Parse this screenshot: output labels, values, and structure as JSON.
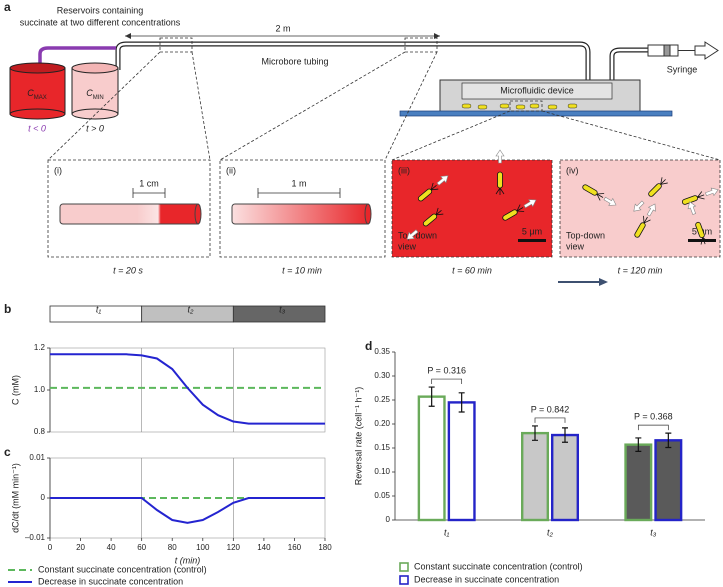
{
  "panel_a": {
    "label": "a",
    "reservoirs_label": [
      "Reservoirs containing",
      "succinate at two different concentrations"
    ],
    "length": "2 m",
    "tubing": "Microbore tubing",
    "device": "Microfluidic device",
    "syringe": "Syringe",
    "reservoirs": [
      {
        "symbol": "C",
        "subscript": "MAX",
        "time": "t < 0"
      },
      {
        "symbol": "C",
        "subscript": "MIN",
        "time": "t > 0"
      }
    ],
    "insets": [
      {
        "label": "(i)",
        "scale": "1 cm",
        "time": "t = 20 s"
      },
      {
        "label": "(ii)",
        "scale": "1 m",
        "time": "t = 10 min"
      },
      {
        "label": "(iii)",
        "view": [
          "Top-down",
          "view"
        ],
        "scale": "5 μm",
        "time": "t = 60 min"
      },
      {
        "label": "(iv)",
        "view": [
          "Top-down",
          "view"
        ],
        "scale": "5 μm",
        "time": "t = 120 min"
      }
    ]
  },
  "chart_data": [
    {
      "type": "line",
      "panel": "b",
      "ylabel": "C (mM)",
      "xlim": [
        0,
        180
      ],
      "ylim": [
        0.8,
        1.2
      ],
      "yticks": [
        0.8,
        {
          "value": 1,
          "label": "1.0"
        },
        1.2
      ],
      "phases": [
        {
          "label": "t₁",
          "start": 0,
          "end": 60,
          "color": "#ffffff"
        },
        {
          "label": "t₂",
          "start": 60,
          "end": 120,
          "color": "#c0c0c0"
        },
        {
          "label": "t₃",
          "start": 120,
          "end": 180,
          "color": "#666666"
        }
      ],
      "x": [
        0,
        10,
        20,
        30,
        40,
        50,
        60,
        70,
        80,
        90,
        100,
        110,
        120,
        130,
        140,
        150,
        160,
        170,
        180
      ],
      "series": [
        {
          "color": "#5cb85c",
          "style": "dashed",
          "values": [
            1.01,
            1.01,
            1.01,
            1.01,
            1.01,
            1.01,
            1.01,
            1.01,
            1.01,
            1.01,
            1.01,
            1.01,
            1.01,
            1.01,
            1.01,
            1.01,
            1.01,
            1.01,
            1.01
          ]
        },
        {
          "color": "#2424d0",
          "style": "solid",
          "values": [
            1.17,
            1.17,
            1.17,
            1.17,
            1.17,
            1.17,
            1.165,
            1.15,
            1.1,
            1.01,
            0.93,
            0.88,
            0.85,
            0.84,
            0.84,
            0.84,
            0.84,
            0.84,
            0.84
          ]
        }
      ]
    },
    {
      "type": "line",
      "panel": "c",
      "ylabel": "dC/dt (mM min⁻¹)",
      "xlabel": "t (min)",
      "xlim": [
        0,
        180
      ],
      "xticks": [
        0,
        20,
        40,
        60,
        80,
        100,
        120,
        140,
        160,
        180
      ],
      "ylim": [
        -0.01,
        0.01
      ],
      "yticks": [
        {
          "value": -0.01,
          "label": "–0.01"
        },
        0,
        0.01
      ],
      "vlines": [
        60,
        120
      ],
      "x": [
        0,
        10,
        20,
        30,
        40,
        50,
        60,
        70,
        80,
        90,
        100,
        110,
        120,
        130,
        140,
        150,
        160,
        170,
        180
      ],
      "series": [
        {
          "name": "Constant succinate concentration (control)",
          "color": "#5cb85c",
          "style": "dashed",
          "values": [
            0,
            0,
            0,
            0,
            0,
            0,
            0,
            0,
            0,
            0,
            0,
            0,
            0,
            0,
            0,
            0,
            0,
            0,
            0
          ]
        },
        {
          "name": "Decrease in succinate concentration",
          "color": "#2424d0",
          "style": "solid",
          "values": [
            0,
            0,
            0,
            0,
            0,
            0,
            0,
            -0.003,
            -0.0055,
            -0.0062,
            -0.0055,
            -0.0035,
            -0.0012,
            0,
            0,
            0,
            0,
            0,
            0
          ]
        }
      ]
    },
    {
      "type": "bar",
      "panel": "d",
      "ylabel": "Reversal rate (cell⁻¹ h⁻¹)",
      "categories": [
        "t₁",
        "t₂",
        "t₃"
      ],
      "fills": [
        "#ffffff",
        "#c8c8c8",
        "#5a5a5a"
      ],
      "ylim": [
        0,
        0.35
      ],
      "yticks": [
        0,
        0.05,
        {
          "value": 0.1,
          "label": "0.10"
        },
        0.15,
        {
          "value": 0.2,
          "label": "0.20"
        },
        0.25,
        {
          "value": 0.3,
          "label": "0.30"
        },
        0.35
      ],
      "annotations": [
        "P = 0.316",
        "P = 0.842",
        "P = 0.368"
      ],
      "series": [
        {
          "name": "Constant succinate concentration (control)",
          "color": "#6aaa5a",
          "values": [
            0.257,
            0.181,
            0.157
          ],
          "errors": [
            0.02,
            0.015,
            0.014
          ]
        },
        {
          "name": "Decrease in succinate concentration",
          "color": "#2424c8",
          "values": [
            0.245,
            0.177,
            0.166
          ],
          "errors": [
            0.02,
            0.015,
            0.015
          ]
        }
      ]
    }
  ]
}
